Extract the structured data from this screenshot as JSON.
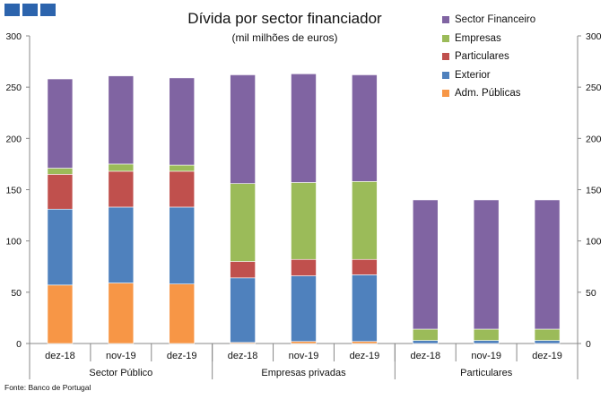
{
  "header": {
    "title": "Dívida por sector financiador",
    "subtitle": "(mil milhões de euros)",
    "source": "Fonte: Banco de Portugal"
  },
  "chart_data": {
    "type": "bar",
    "stacked": true,
    "ylim": [
      0,
      300
    ],
    "yticks": [
      0,
      50,
      100,
      150,
      200,
      250,
      300
    ],
    "groups": [
      "Sector Público",
      "Empresas privadas",
      "Particulares"
    ],
    "categories": [
      "dez-18",
      "nov-19",
      "dez-19",
      "dez-18",
      "nov-19",
      "dez-19",
      "dez-18",
      "nov-19",
      "dez-19"
    ],
    "series": [
      {
        "name": "Adm. Públicas",
        "color": "#f79646",
        "values": [
          57,
          59,
          58,
          1,
          2,
          2,
          0,
          0,
          0
        ]
      },
      {
        "name": "Exterior",
        "color": "#4f81bd",
        "values": [
          74,
          74,
          75,
          63,
          64,
          65,
          3,
          3,
          3
        ]
      },
      {
        "name": "Particulares",
        "color": "#c0504d",
        "values": [
          34,
          35,
          35,
          16,
          16,
          15,
          0,
          0,
          0
        ]
      },
      {
        "name": "Empresas",
        "color": "#9bbb59",
        "values": [
          6,
          7,
          6,
          76,
          75,
          76,
          11,
          11,
          11
        ]
      },
      {
        "name": "Sector Financeiro",
        "color": "#8064a2",
        "values": [
          87,
          86,
          85,
          106,
          106,
          104,
          126,
          126,
          126
        ]
      }
    ],
    "legend_order": [
      "Sector Financeiro",
      "Empresas",
      "Particulares",
      "Exterior",
      "Adm. Públicas"
    ],
    "legend_position": "top-right"
  }
}
